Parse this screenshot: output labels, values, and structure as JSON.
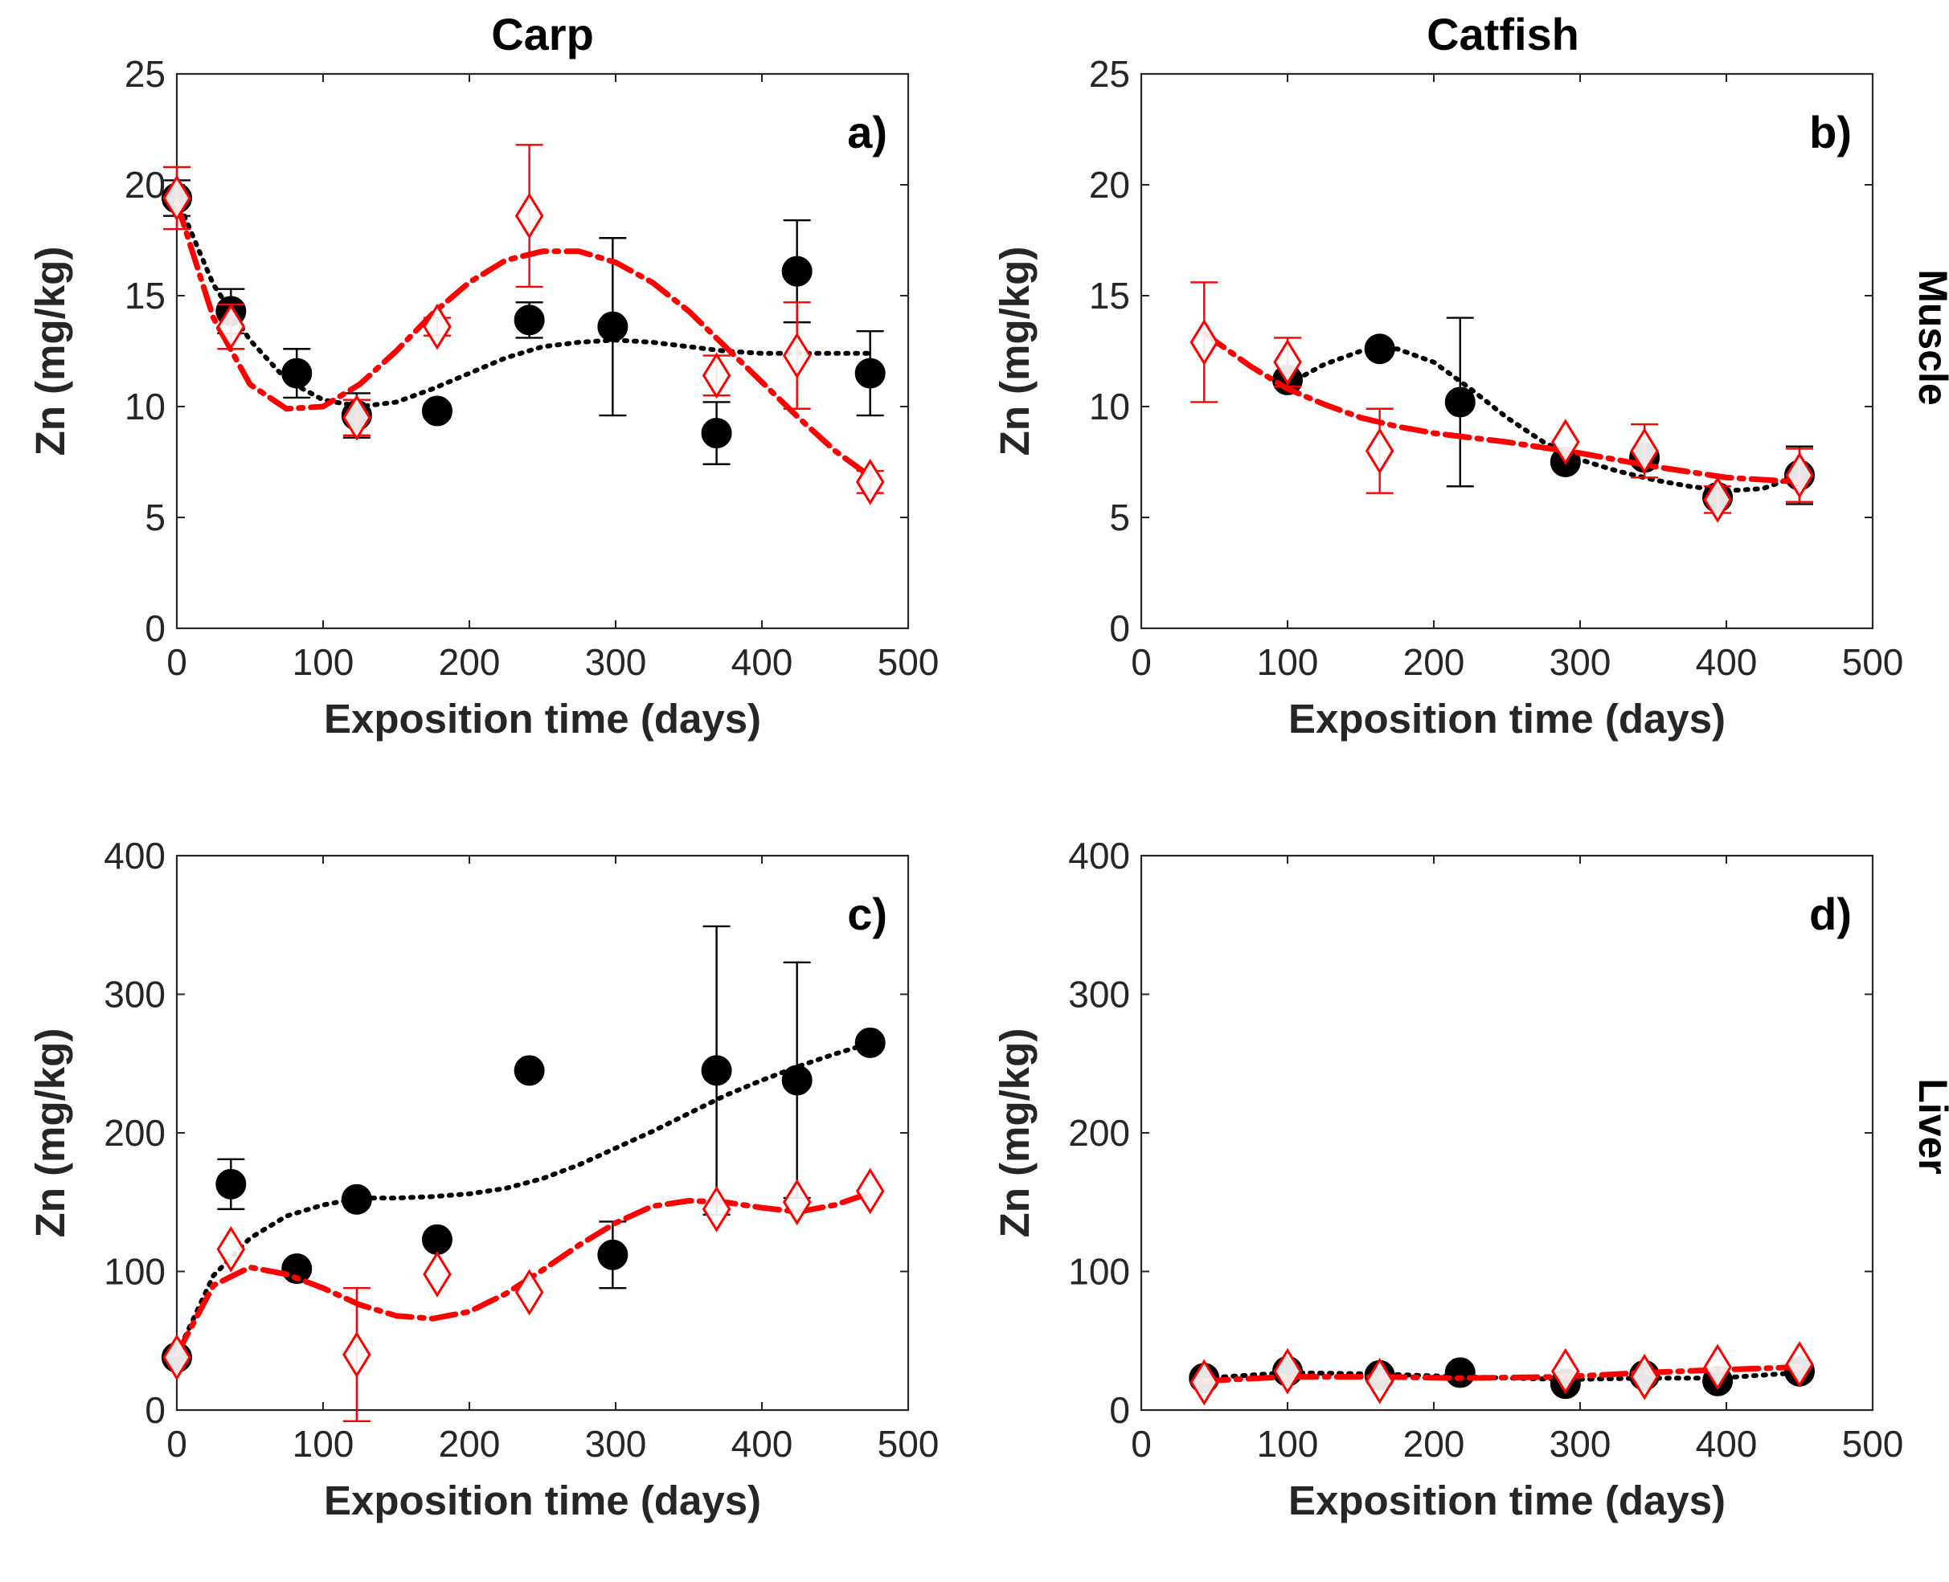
{
  "figure": {
    "column_titles": [
      "Carp",
      "Catfish"
    ],
    "row_labels": [
      "Muscle",
      "Liver"
    ]
  },
  "colors": {
    "series_a": "#000000",
    "series_b": "#ff0000",
    "axis": "#262626"
  },
  "chart_data": [
    {
      "id": "a",
      "panel_label": "a)",
      "type": "scatter",
      "xlabel": "Exposition time (days)",
      "ylabel": "Zn (mg/kg)",
      "xlim": [
        0,
        500
      ],
      "ylim": [
        0,
        25
      ],
      "xticks": [
        0,
        100,
        200,
        300,
        400,
        500
      ],
      "yticks": [
        0,
        5,
        10,
        15,
        20,
        25
      ],
      "series": [
        {
          "name": "black-dots",
          "marker": "circle",
          "color": "#000000",
          "x": [
            0,
            37,
            82,
            123,
            178,
            241,
            298,
            369,
            424,
            474
          ],
          "y": [
            19.4,
            14.3,
            11.5,
            9.6,
            9.8,
            13.9,
            13.6,
            8.8,
            16.1,
            11.5
          ],
          "err": [
            0.8,
            1.0,
            1.1,
            1.0,
            0.3,
            0.8,
            4.0,
            1.4,
            2.3,
            1.9
          ],
          "fit_line": "dotted",
          "fit_x": [
            0,
            25,
            50,
            75,
            100,
            125,
            150,
            175,
            200,
            225,
            250,
            275,
            300,
            325,
            350,
            375,
            400,
            425,
            450,
            475
          ],
          "fit_y": [
            19.4,
            15.5,
            13.0,
            11.2,
            10.3,
            10.0,
            10.2,
            10.8,
            11.5,
            12.2,
            12.7,
            12.9,
            13.0,
            12.9,
            12.7,
            12.5,
            12.4,
            12.4,
            12.4,
            12.4
          ]
        },
        {
          "name": "red-diamonds",
          "marker": "diamond",
          "color": "#ff0000",
          "x": [
            0,
            37,
            123,
            178,
            241,
            369,
            424,
            474
          ],
          "y": [
            19.4,
            13.6,
            9.5,
            13.6,
            18.6,
            11.4,
            12.3,
            6.6
          ],
          "err": [
            1.4,
            1.0,
            0.8,
            0.4,
            3.2,
            0.9,
            2.4,
            0.5
          ],
          "fit_line": "dashdot",
          "fit_x": [
            0,
            25,
            50,
            75,
            100,
            125,
            150,
            175,
            200,
            225,
            250,
            275,
            300,
            325,
            350,
            375,
            400,
            425,
            450,
            475
          ],
          "fit_y": [
            19.2,
            14.0,
            11.0,
            9.9,
            10.0,
            11.0,
            12.5,
            14.2,
            15.6,
            16.6,
            17.0,
            17.0,
            16.5,
            15.6,
            14.3,
            12.7,
            11.1,
            9.5,
            8.0,
            6.8
          ]
        }
      ]
    },
    {
      "id": "b",
      "panel_label": "b)",
      "type": "scatter",
      "xlabel": "Exposition time (days)",
      "ylabel": "Zn (mg/kg)",
      "xlim": [
        0,
        500
      ],
      "ylim": [
        0,
        25
      ],
      "xticks": [
        0,
        100,
        200,
        300,
        400,
        500
      ],
      "yticks": [
        0,
        5,
        10,
        15,
        20,
        25
      ],
      "series": [
        {
          "name": "black-dots",
          "marker": "circle",
          "color": "#000000",
          "x": [
            100,
            163,
            218,
            290,
            344,
            394,
            450
          ],
          "y": [
            11.2,
            12.6,
            10.2,
            7.5,
            7.7,
            5.9,
            6.9
          ],
          "err": [
            0.0,
            0.0,
            3.8,
            0.0,
            0.0,
            0.0,
            1.3
          ],
          "fit_line": "dotted",
          "fit_x": [
            100,
            125,
            150,
            175,
            200,
            225,
            250,
            275,
            300,
            325,
            350,
            375,
            400,
            425,
            450
          ],
          "fit_y": [
            11.0,
            11.9,
            12.5,
            12.6,
            12.0,
            10.8,
            9.5,
            8.4,
            7.6,
            7.1,
            6.7,
            6.4,
            6.2,
            6.3,
            6.9
          ]
        },
        {
          "name": "red-diamonds",
          "marker": "diamond",
          "color": "#ff0000",
          "x": [
            43,
            100,
            163,
            290,
            344,
            394,
            450
          ],
          "y": [
            12.9,
            12.0,
            8.0,
            8.4,
            8.0,
            5.8,
            6.9
          ],
          "err": [
            2.7,
            1.1,
            1.9,
            0.0,
            1.2,
            0.6,
            1.2
          ],
          "fit_line": "dashdot",
          "fit_x": [
            43,
            75,
            100,
            125,
            150,
            175,
            200,
            250,
            300,
            350,
            400,
            450
          ],
          "fit_y": [
            13.3,
            11.8,
            10.8,
            10.1,
            9.5,
            9.1,
            8.8,
            8.4,
            7.9,
            7.3,
            6.8,
            6.6
          ]
        }
      ]
    },
    {
      "id": "c",
      "panel_label": "c)",
      "type": "scatter",
      "xlabel": "Exposition time (days)",
      "ylabel": "Zn (mg/kg)",
      "xlim": [
        0,
        500
      ],
      "ylim": [
        0,
        400
      ],
      "xticks": [
        0,
        100,
        200,
        300,
        400,
        500
      ],
      "yticks": [
        0,
        100,
        200,
        300,
        400
      ],
      "series": [
        {
          "name": "black-dots",
          "marker": "circle",
          "color": "#000000",
          "x": [
            0,
            37,
            82,
            123,
            178,
            241,
            298,
            369,
            424,
            474
          ],
          "y": [
            38,
            163,
            102,
            152,
            123,
            245,
            112,
            245,
            238,
            265
          ],
          "err": [
            0,
            18,
            0,
            0,
            0,
            0,
            24,
            104,
            85,
            0
          ],
          "fit_line": "dotted",
          "fit_x": [
            0,
            25,
            50,
            75,
            100,
            125,
            150,
            175,
            200,
            225,
            250,
            275,
            300,
            325,
            350,
            375,
            400,
            425,
            450,
            475
          ],
          "fit_y": [
            40,
            97,
            124,
            140,
            148,
            153,
            153,
            154,
            156,
            160,
            167,
            177,
            189,
            201,
            214,
            227,
            238,
            248,
            257,
            265
          ]
        },
        {
          "name": "red-diamonds",
          "marker": "diamond",
          "color": "#ff0000",
          "x": [
            0,
            37,
            123,
            178,
            241,
            369,
            424,
            474
          ],
          "y": [
            38,
            116,
            40,
            98,
            85,
            145,
            150,
            158
          ],
          "err": [
            0,
            0,
            48,
            0,
            0,
            0,
            0,
            0
          ],
          "fit_line": "dashdot",
          "fit_x": [
            0,
            25,
            50,
            75,
            100,
            125,
            150,
            175,
            200,
            225,
            250,
            275,
            300,
            325,
            350,
            375,
            400,
            425,
            450,
            475
          ],
          "fit_y": [
            40,
            90,
            103,
            98,
            88,
            76,
            68,
            66,
            71,
            84,
            101,
            119,
            135,
            147,
            151,
            150,
            146,
            143,
            148,
            157
          ]
        }
      ]
    },
    {
      "id": "d",
      "panel_label": "d)",
      "type": "scatter",
      "xlabel": "Exposition time (days)",
      "ylabel": "Zn (mg/kg)",
      "xlim": [
        0,
        500
      ],
      "ylim": [
        0,
        400
      ],
      "xticks": [
        0,
        100,
        200,
        300,
        400,
        500
      ],
      "yticks": [
        0,
        100,
        200,
        300,
        400
      ],
      "series": [
        {
          "name": "black-dots",
          "marker": "circle",
          "color": "#000000",
          "x": [
            43,
            100,
            163,
            218,
            290,
            344,
            394,
            450
          ],
          "y": [
            23,
            28,
            25,
            27,
            19,
            25,
            21,
            28
          ],
          "err": [
            0,
            0,
            0,
            0,
            0,
            0,
            0,
            0
          ],
          "fit_line": "dotted",
          "fit_x": [
            43,
            100,
            163,
            218,
            290,
            344,
            394,
            450
          ],
          "fit_y": [
            23,
            27,
            26,
            24,
            22,
            23,
            23,
            27
          ]
        },
        {
          "name": "red-diamonds",
          "marker": "diamond",
          "color": "#ff0000",
          "x": [
            43,
            100,
            163,
            290,
            344,
            394,
            450
          ],
          "y": [
            20,
            28,
            21,
            28,
            24,
            31,
            33
          ],
          "err": [
            0,
            0,
            0,
            0,
            0,
            0,
            0
          ],
          "fit_line": "dashdot",
          "fit_x": [
            43,
            100,
            163,
            218,
            290,
            344,
            394,
            450
          ],
          "fit_y": [
            21,
            24,
            24,
            23,
            24,
            27,
            29,
            31
          ]
        }
      ]
    }
  ]
}
